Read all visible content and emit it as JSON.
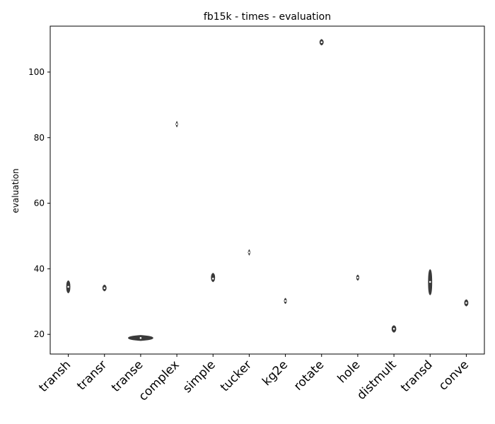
{
  "chart_data": {
    "type": "violin",
    "title": "fb15k - times - evaluation",
    "xlabel": "",
    "ylabel": "evaluation",
    "ylim": [
      14,
      114
    ],
    "yticks": [
      20,
      40,
      60,
      80,
      100
    ],
    "grid": false,
    "categories": [
      "transh",
      "transr",
      "transe",
      "complex",
      "simple",
      "tucker",
      "kg2e",
      "rotate",
      "hole",
      "distmult",
      "transd",
      "conve"
    ],
    "series": [
      {
        "category": "transh",
        "min": 33.0,
        "q1": 33.8,
        "median": 34.5,
        "q3": 35.0,
        "max": 36.0,
        "width": 0.12
      },
      {
        "category": "transr",
        "min": 33.6,
        "q1": 33.8,
        "median": 34.1,
        "q3": 34.4,
        "max": 34.7,
        "width": 0.12
      },
      {
        "category": "transe",
        "min": 18.9,
        "q1": 18.9,
        "median": 18.9,
        "q3": 18.9,
        "max": 18.9,
        "width": 0.9
      },
      {
        "category": "complex",
        "min": 84.1,
        "q1": 84.1,
        "median": 84.1,
        "q3": 84.1,
        "max": 84.1,
        "width": 0.04
      },
      {
        "category": "simple",
        "min": 36.4,
        "q1": 36.6,
        "median": 37.0,
        "q3": 37.4,
        "max": 38.3,
        "width": 0.12
      },
      {
        "category": "tucker",
        "min": 45.0,
        "q1": 45.0,
        "median": 45.0,
        "q3": 45.0,
        "max": 45.0,
        "width": 0.04
      },
      {
        "category": "kg2e",
        "min": 30.2,
        "q1": 30.2,
        "median": 30.2,
        "q3": 30.2,
        "max": 30.2,
        "width": 0.07
      },
      {
        "category": "rotate",
        "min": 108.6,
        "q1": 108.8,
        "median": 109.1,
        "q3": 109.4,
        "max": 109.6,
        "width": 0.12
      },
      {
        "category": "hole",
        "min": 37.3,
        "q1": 37.3,
        "median": 37.3,
        "q3": 37.3,
        "max": 37.3,
        "width": 0.08
      },
      {
        "category": "distmult",
        "min": 21.0,
        "q1": 21.3,
        "median": 21.7,
        "q3": 22.0,
        "max": 22.3,
        "width": 0.14
      },
      {
        "category": "transd",
        "min": 32.4,
        "q1": 34.5,
        "median": 36.0,
        "q3": 37.5,
        "max": 39.4,
        "width": 0.12
      },
      {
        "category": "conve",
        "min": 29.0,
        "q1": 29.2,
        "median": 29.6,
        "q3": 29.9,
        "max": 30.2,
        "width": 0.12
      }
    ],
    "colors": {
      "violin": "#3a3a3a",
      "median": "#ffffff",
      "axis": "#000000"
    }
  }
}
